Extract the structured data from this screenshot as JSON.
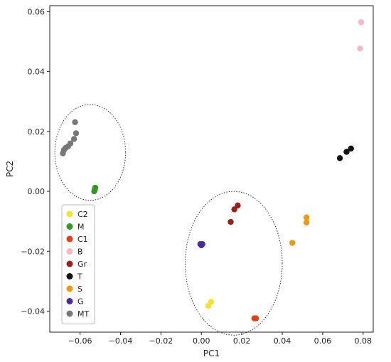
{
  "chart_data": {
    "type": "scatter",
    "title": "",
    "xlabel": "PC1",
    "ylabel": "PC2",
    "xlim": [
      -0.075,
      0.085
    ],
    "ylim": [
      -0.047,
      0.062
    ],
    "xticks": [
      -0.06,
      -0.04,
      -0.02,
      0.0,
      0.02,
      0.04,
      0.06,
      0.08
    ],
    "xtick_labels": [
      "−0.06",
      "−0.04",
      "−0.02",
      "0.00",
      "0.02",
      "0.04",
      "0.06",
      "0.08"
    ],
    "yticks": [
      -0.04,
      -0.02,
      0.0,
      0.02,
      0.04,
      0.06
    ],
    "ytick_labels": [
      "−0.04",
      "−0.02",
      "0.00",
      "0.02",
      "0.04",
      "0.06"
    ],
    "grid": false,
    "legend_position": "lower-left",
    "series": [
      {
        "name": "C2",
        "color": "#f5e036",
        "points": [
          [
            0.0035,
            -0.0382
          ],
          [
            0.0048,
            -0.0369
          ]
        ]
      },
      {
        "name": "M",
        "color": "#2f9a1e",
        "points": [
          [
            -0.053,
            0.0
          ],
          [
            -0.0527,
            0.0006
          ],
          [
            -0.0525,
            0.0012
          ]
        ]
      },
      {
        "name": "C1",
        "color": "#e0401c",
        "points": [
          [
            0.0262,
            -0.0424
          ],
          [
            0.027,
            -0.0424
          ]
        ]
      },
      {
        "name": "B",
        "color": "#f5b8c8",
        "points": [
          [
            0.079,
            0.0565
          ],
          [
            0.0785,
            0.0477
          ]
        ]
      },
      {
        "name": "Gr",
        "color": "#9b1f1a",
        "points": [
          [
            0.018,
            -0.0047
          ],
          [
            0.0163,
            -0.006
          ],
          [
            0.0145,
            -0.0102
          ]
        ]
      },
      {
        "name": "T",
        "color": "#111111",
        "points": [
          [
            0.0685,
            0.0111
          ],
          [
            0.0718,
            0.0132
          ],
          [
            0.074,
            0.0143
          ]
        ]
      },
      {
        "name": "S",
        "color": "#f09a12",
        "points": [
          [
            0.052,
            -0.0087
          ],
          [
            0.052,
            -0.0104
          ],
          [
            0.045,
            -0.0172
          ]
        ]
      },
      {
        "name": "G",
        "color": "#4b2a9e",
        "points": [
          [
            -0.0005,
            -0.0176
          ],
          [
            0.0005,
            -0.0176
          ],
          [
            0.0,
            -0.018
          ]
        ]
      },
      {
        "name": "MT",
        "color": "#777777",
        "points": [
          [
            -0.0625,
            0.0231
          ],
          [
            -0.062,
            0.0194
          ],
          [
            -0.063,
            0.0175
          ],
          [
            -0.0648,
            0.016
          ],
          [
            -0.066,
            0.015
          ],
          [
            -0.0672,
            0.0145
          ],
          [
            -0.068,
            0.0138
          ],
          [
            -0.0685,
            0.0127
          ]
        ]
      }
    ],
    "ellipses": [
      {
        "cx": -0.055,
        "cy": 0.013,
        "rx": 0.0175,
        "ry": 0.016
      },
      {
        "cx": 0.016,
        "cy": -0.024,
        "rx": 0.024,
        "ry": 0.024
      }
    ]
  }
}
